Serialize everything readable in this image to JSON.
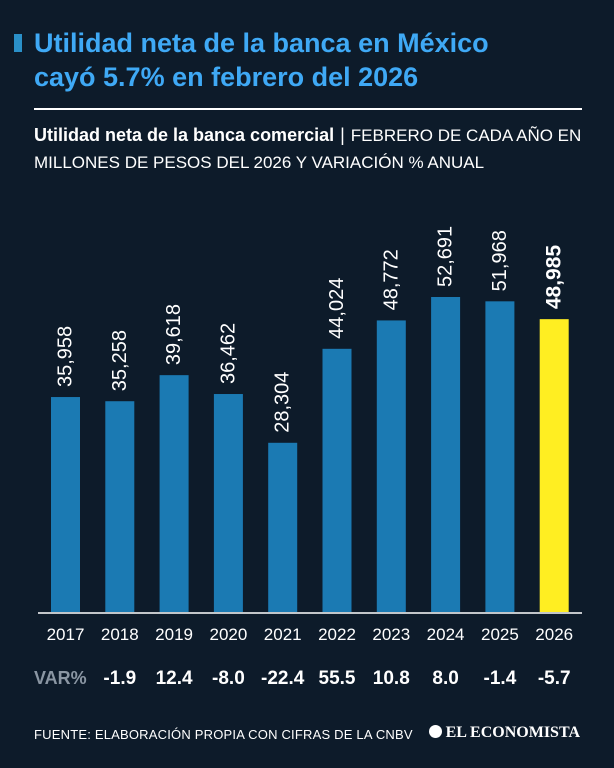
{
  "headline": {
    "line1": "Utilidad neta de la banca en México",
    "line2": "cayó 5.7% en febrero del 2026"
  },
  "subtitle": {
    "bold": "Utilidad neta de la banca comercial",
    "separator": "|",
    "rest": "FEBRERO DE CADA AÑO EN MILLONES DE PESOS DEL 2026 Y VARIACIÓN % ANUAL"
  },
  "colors": {
    "background": "#0d1b2a",
    "bar": "#1b7ab3",
    "highlight_bar": "#ffee22",
    "headline": "#3fa9f5"
  },
  "chart_data": {
    "type": "bar",
    "categories": [
      "2017",
      "2018",
      "2019",
      "2020",
      "2021",
      "2022",
      "2023",
      "2024",
      "2025",
      "2026"
    ],
    "values": [
      35958,
      35258,
      39618,
      36462,
      28304,
      44024,
      48772,
      52691,
      51968,
      48985
    ],
    "value_labels": [
      "35,958",
      "35,258",
      "39,618",
      "36,462",
      "28,304",
      "44,024",
      "48,772",
      "52,691",
      "51,968",
      "48,985"
    ],
    "highlight_index": 9,
    "ylim": [
      0,
      60000
    ],
    "grid": false,
    "legend": "none"
  },
  "variation": {
    "label": "VAR%",
    "values": [
      "",
      "-1.9",
      "12.4",
      "-8.0",
      "-22.4",
      "55.5",
      "10.8",
      "8.0",
      "-1.4",
      "-5.7"
    ]
  },
  "footer": {
    "source": "FUENTE: ELABORACIÓN PROPIA CON CIFRAS DE LA CNBV",
    "brand": "EL ECONOMISTA",
    "brand_icon": "globe-icon"
  }
}
